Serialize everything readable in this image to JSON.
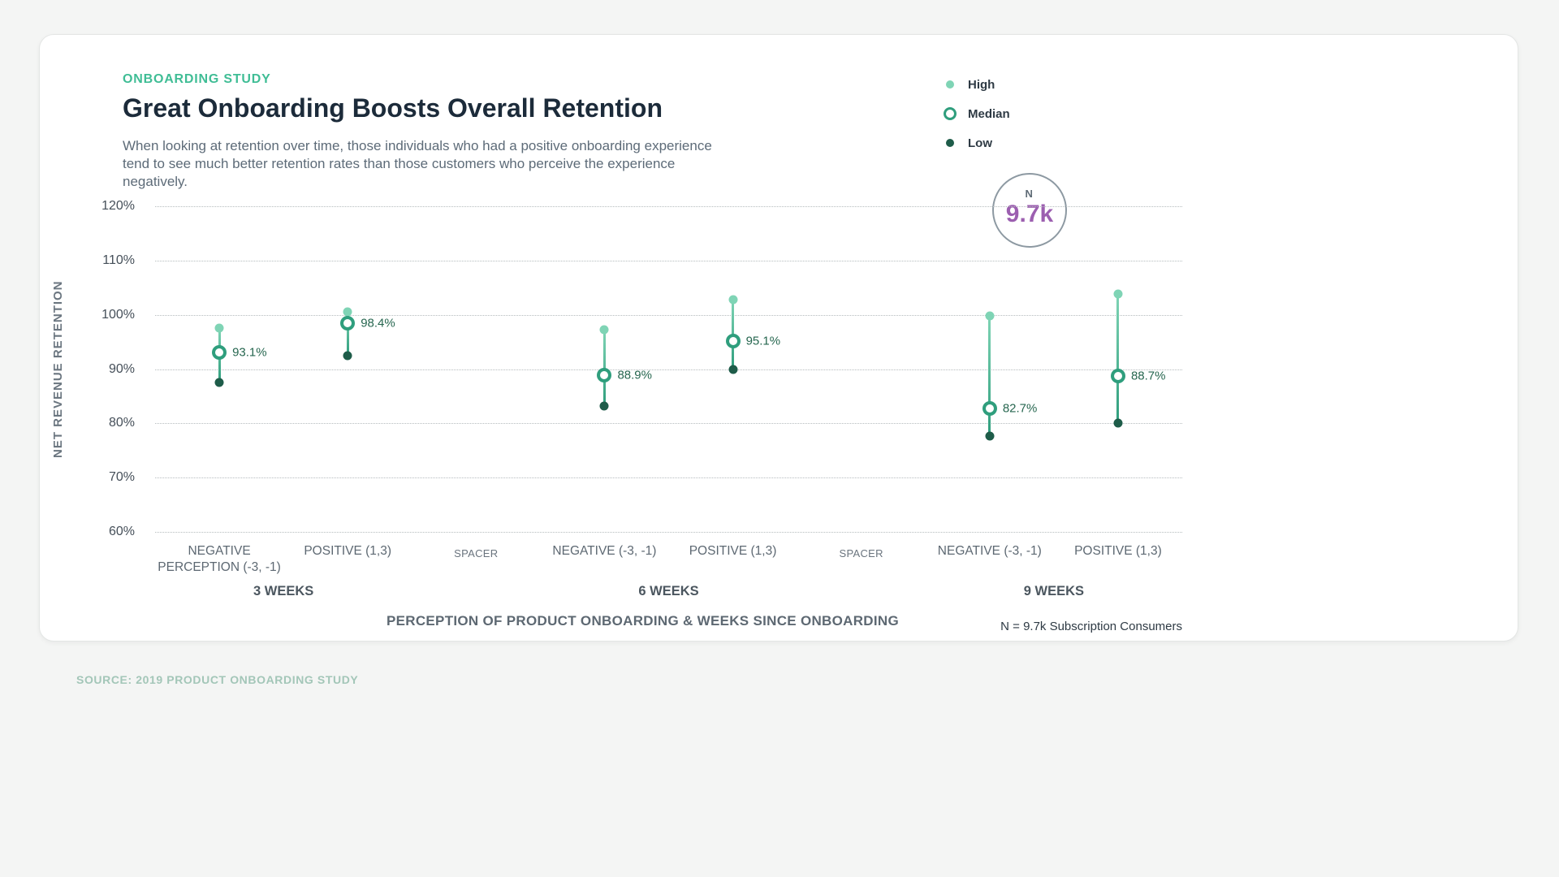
{
  "header": {
    "eyebrow": "ONBOARDING STUDY",
    "title": "Great Onboarding Boosts Overall Retention",
    "subtitle": "When looking at retention over time, those individuals who had a positive onboarding experience tend to see much better retention rates than those customers who perceive the experience negatively."
  },
  "badge": {
    "label": "N",
    "value": "9.7k"
  },
  "footnote": "N = 9.7k Subscription Consumers",
  "source": "SOURCE: 2019 PRODUCT ONBOARDING STUDY",
  "colors": {
    "accent": "#3fbd95",
    "title": "#1c2b3a",
    "high": "#7fd4b5",
    "median": "#2f9e7d",
    "low": "#1e5c49",
    "n_value": "#9c5fb0",
    "source": "#a3c6b8"
  },
  "chart_data": {
    "type": "dumbbell",
    "title": "Great Onboarding Boosts Overall Retention",
    "ylabel": "NET REVENUE RETENTION",
    "xlabel": "PERCEPTION OF PRODUCT ONBOARDING & WEEKS SINCE ONBOARDING",
    "ylim": [
      60,
      120
    ],
    "yticks": [
      "120%",
      "110%",
      "100%",
      "90%",
      "80%",
      "70%",
      "60%"
    ],
    "grid": "dotted-horizontal",
    "legend_position": "top-right",
    "legend": [
      {
        "label": "High",
        "marker": "dot",
        "color": "#7fd4b5"
      },
      {
        "label": "Median",
        "marker": "ring",
        "color": "#2f9e7d"
      },
      {
        "label": "Low",
        "marker": "dot",
        "color": "#1e5c49"
      }
    ],
    "columns": [
      {
        "category": "NEGATIVE PERCEPTION (-3, -1)",
        "group": "3 WEEKS",
        "high": 97.5,
        "median": 93.1,
        "low": 87.5,
        "median_label": "93.1%"
      },
      {
        "category": "POSITIVE (1,3)",
        "group": "3 WEEKS",
        "high": 100.5,
        "median": 98.4,
        "low": 92.4,
        "median_label": "98.4%"
      },
      {
        "category": "SPACER",
        "spacer": true
      },
      {
        "category": "NEGATIVE (-3, -1)",
        "group": "6 WEEKS",
        "high": 97.3,
        "median": 88.9,
        "low": 83.2,
        "median_label": "88.9%"
      },
      {
        "category": "POSITIVE (1,3)",
        "group": "6 WEEKS",
        "high": 102.8,
        "median": 95.1,
        "low": 90.0,
        "median_label": "95.1%"
      },
      {
        "category": "SPACER",
        "spacer": true
      },
      {
        "category": "NEGATIVE (-3, -1)",
        "group": "9 WEEKS",
        "high": 99.8,
        "median": 82.7,
        "low": 77.6,
        "median_label": "82.7%"
      },
      {
        "category": "POSITIVE (1,3)",
        "group": "9 WEEKS",
        "high": 103.8,
        "median": 88.7,
        "low": 80.0,
        "median_label": "88.7%"
      }
    ],
    "groups": [
      {
        "label": "3 WEEKS",
        "span": [
          0,
          1
        ]
      },
      {
        "label": "6 WEEKS",
        "span": [
          3,
          4
        ]
      },
      {
        "label": "9 WEEKS",
        "span": [
          6,
          7
        ]
      }
    ]
  }
}
